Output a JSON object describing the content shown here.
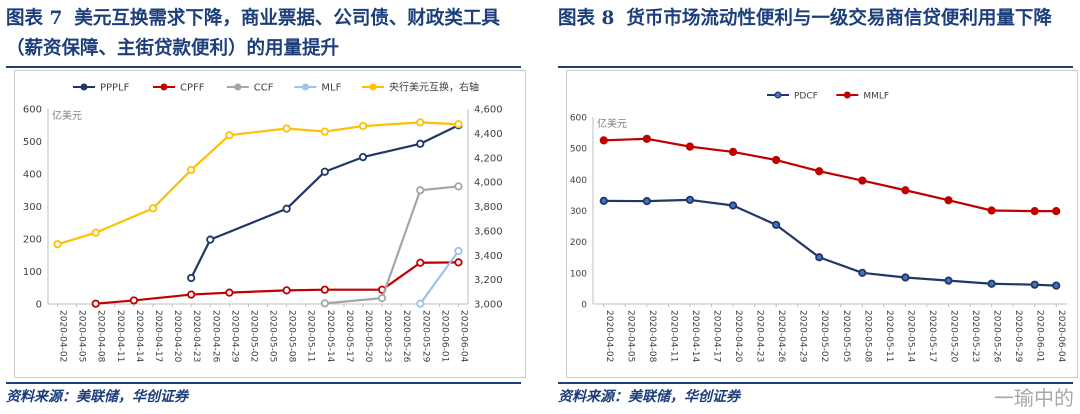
{
  "left": {
    "figure_no": "图表 7",
    "title": "美元互换需求下降，商业票据、公司债、财政类工具（薪资保障、主街贷款便利）的用量提升",
    "source": "资料来源：美联储，华创证券",
    "chart_data": {
      "type": "line",
      "unit_label": "亿美元",
      "categories": [
        "2020-04-02",
        "2020-04-05",
        "2020-04-08",
        "2020-04-11",
        "2020-04-14",
        "2020-04-17",
        "2020-04-20",
        "2020-04-23",
        "2020-04-26",
        "2020-04-29",
        "2020-05-02",
        "2020-05-05",
        "2020-05-08",
        "2020-05-11",
        "2020-05-14",
        "2020-05-17",
        "2020-05-20",
        "2020-05-23",
        "2020-05-26",
        "2020-05-29",
        "2020-06-01",
        "2020-06-04"
      ],
      "ylim_left": [
        0,
        600
      ],
      "yticks_left": [
        0,
        100,
        200,
        300,
        400,
        500,
        600
      ],
      "ylim_right": [
        3000,
        4600
      ],
      "yticks_right": [
        3000,
        3200,
        3400,
        3600,
        3800,
        4000,
        4200,
        4400,
        4600
      ],
      "ytick_labels_right": [
        "3,000",
        "3,200",
        "3,400",
        "3,600",
        "3,800",
        "4,000",
        "4,200",
        "4,400",
        "4,600"
      ],
      "series": [
        {
          "name": "PPPLF",
          "color": "#1f3864",
          "axis": "left",
          "marker": "circle",
          "x": [
            "2020-04-23",
            "2020-04-26",
            "2020-05-08",
            "2020-05-14",
            "2020-05-20",
            "2020-05-29",
            "2020-06-04"
          ],
          "values": [
            80,
            198,
            293,
            407,
            452,
            493,
            550
          ]
        },
        {
          "name": "CPFF",
          "color": "#c00000",
          "axis": "left",
          "marker": "circle",
          "x": [
            "2020-04-08",
            "2020-04-14",
            "2020-04-23",
            "2020-04-29",
            "2020-05-08",
            "2020-05-14",
            "2020-05-23",
            "2020-05-29",
            "2020-06-04"
          ],
          "values": [
            1,
            11,
            29,
            35,
            42,
            44,
            44,
            127,
            128
          ]
        },
        {
          "name": "CCF",
          "color": "#a6a6a6",
          "axis": "left",
          "marker": "circle",
          "x": [
            "2020-05-14",
            "2020-05-23",
            "2020-05-29",
            "2020-06-04"
          ],
          "values": [
            2,
            18,
            350,
            362
          ]
        },
        {
          "name": "MLF",
          "color": "#9dc3e6",
          "axis": "left",
          "marker": "circle",
          "x": [
            "2020-05-29",
            "2020-06-04"
          ],
          "values": [
            1,
            163
          ]
        },
        {
          "name": "央行美元互换，右轴",
          "color": "#ffc000",
          "axis": "right",
          "marker": "circle",
          "x": [
            "2020-04-02",
            "2020-04-08",
            "2020-04-17",
            "2020-04-23",
            "2020-04-29",
            "2020-05-08",
            "2020-05-14",
            "2020-05-20",
            "2020-05-29",
            "2020-06-04"
          ],
          "values": [
            3490,
            3585,
            3785,
            4100,
            4385,
            4440,
            4415,
            4460,
            4490,
            4475
          ]
        }
      ]
    }
  },
  "right": {
    "figure_no": "图表 8",
    "title": "货币市场流动性便利与一级交易商信贷便利用量下降",
    "source": "资料来源：美联储，华创证券",
    "watermark": "一瑜中的",
    "chart_data": {
      "type": "line",
      "unit_label": "亿美元",
      "categories": [
        "2020-04-02",
        "2020-04-05",
        "2020-04-08",
        "2020-04-11",
        "2020-04-14",
        "2020-04-17",
        "2020-04-20",
        "2020-04-23",
        "2020-04-26",
        "2020-04-29",
        "2020-05-02",
        "2020-05-05",
        "2020-05-08",
        "2020-05-11",
        "2020-05-14",
        "2020-05-17",
        "2020-05-20",
        "2020-05-23",
        "2020-05-26",
        "2020-05-29",
        "2020-06-01",
        "2020-06-04"
      ],
      "ylim": [
        0,
        600
      ],
      "yticks": [
        0,
        100,
        200,
        300,
        400,
        500,
        600
      ],
      "series": [
        {
          "name": "PDCF",
          "color": "#1f3864",
          "marker": "circle",
          "marker_fill": "#4472c4",
          "x": [
            "2020-04-02",
            "2020-04-08",
            "2020-04-14",
            "2020-04-20",
            "2020-04-26",
            "2020-05-02",
            "2020-05-08",
            "2020-05-14",
            "2020-05-20",
            "2020-05-26",
            "2020-06-01",
            "2020-06-04"
          ],
          "values": [
            331,
            330,
            334,
            316,
            254,
            150,
            100,
            85,
            75,
            65,
            62,
            59
          ]
        },
        {
          "name": "MMLF",
          "color": "#c00000",
          "marker": "circle",
          "marker_fill": "#c00000",
          "x": [
            "2020-04-02",
            "2020-04-08",
            "2020-04-14",
            "2020-04-20",
            "2020-04-26",
            "2020-05-02",
            "2020-05-08",
            "2020-05-14",
            "2020-05-20",
            "2020-05-26",
            "2020-06-01",
            "2020-06-04"
          ],
          "values": [
            525,
            530,
            505,
            488,
            462,
            426,
            396,
            365,
            333,
            300,
            298,
            298
          ]
        }
      ]
    }
  }
}
